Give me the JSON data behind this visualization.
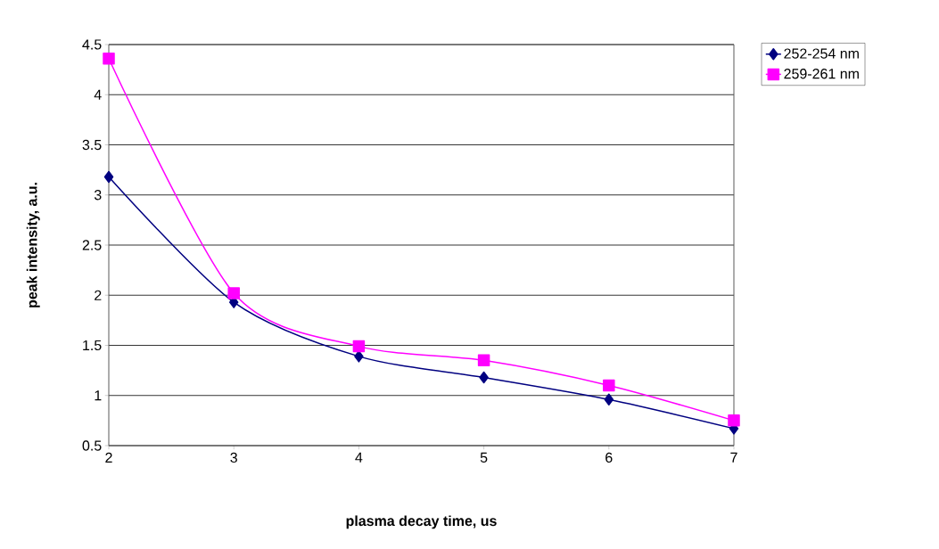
{
  "chart_data": {
    "type": "line",
    "xlabel": "plasma decay time, us",
    "ylabel": "peak intensity, a.u.",
    "x": [
      2,
      3,
      4,
      5,
      6,
      7
    ],
    "series": [
      {
        "name": "252-254 nm",
        "color": "#000080",
        "marker": "diamond",
        "values": [
          3.18,
          1.93,
          1.39,
          1.18,
          0.96,
          0.67
        ]
      },
      {
        "name": "259-261 nm",
        "color": "#ff00ff",
        "marker": "square",
        "values": [
          4.36,
          2.02,
          1.49,
          1.35,
          1.1,
          0.75
        ]
      }
    ],
    "xlim": [
      2,
      7
    ],
    "ylim": [
      0.5,
      4.5
    ],
    "xticks": [
      2,
      3,
      4,
      5,
      6,
      7
    ],
    "yticks": [
      0.5,
      1,
      1.5,
      2,
      2.5,
      3,
      3.5,
      4,
      4.5
    ],
    "grid": "y",
    "legend": "right",
    "line_style": "solid"
  }
}
